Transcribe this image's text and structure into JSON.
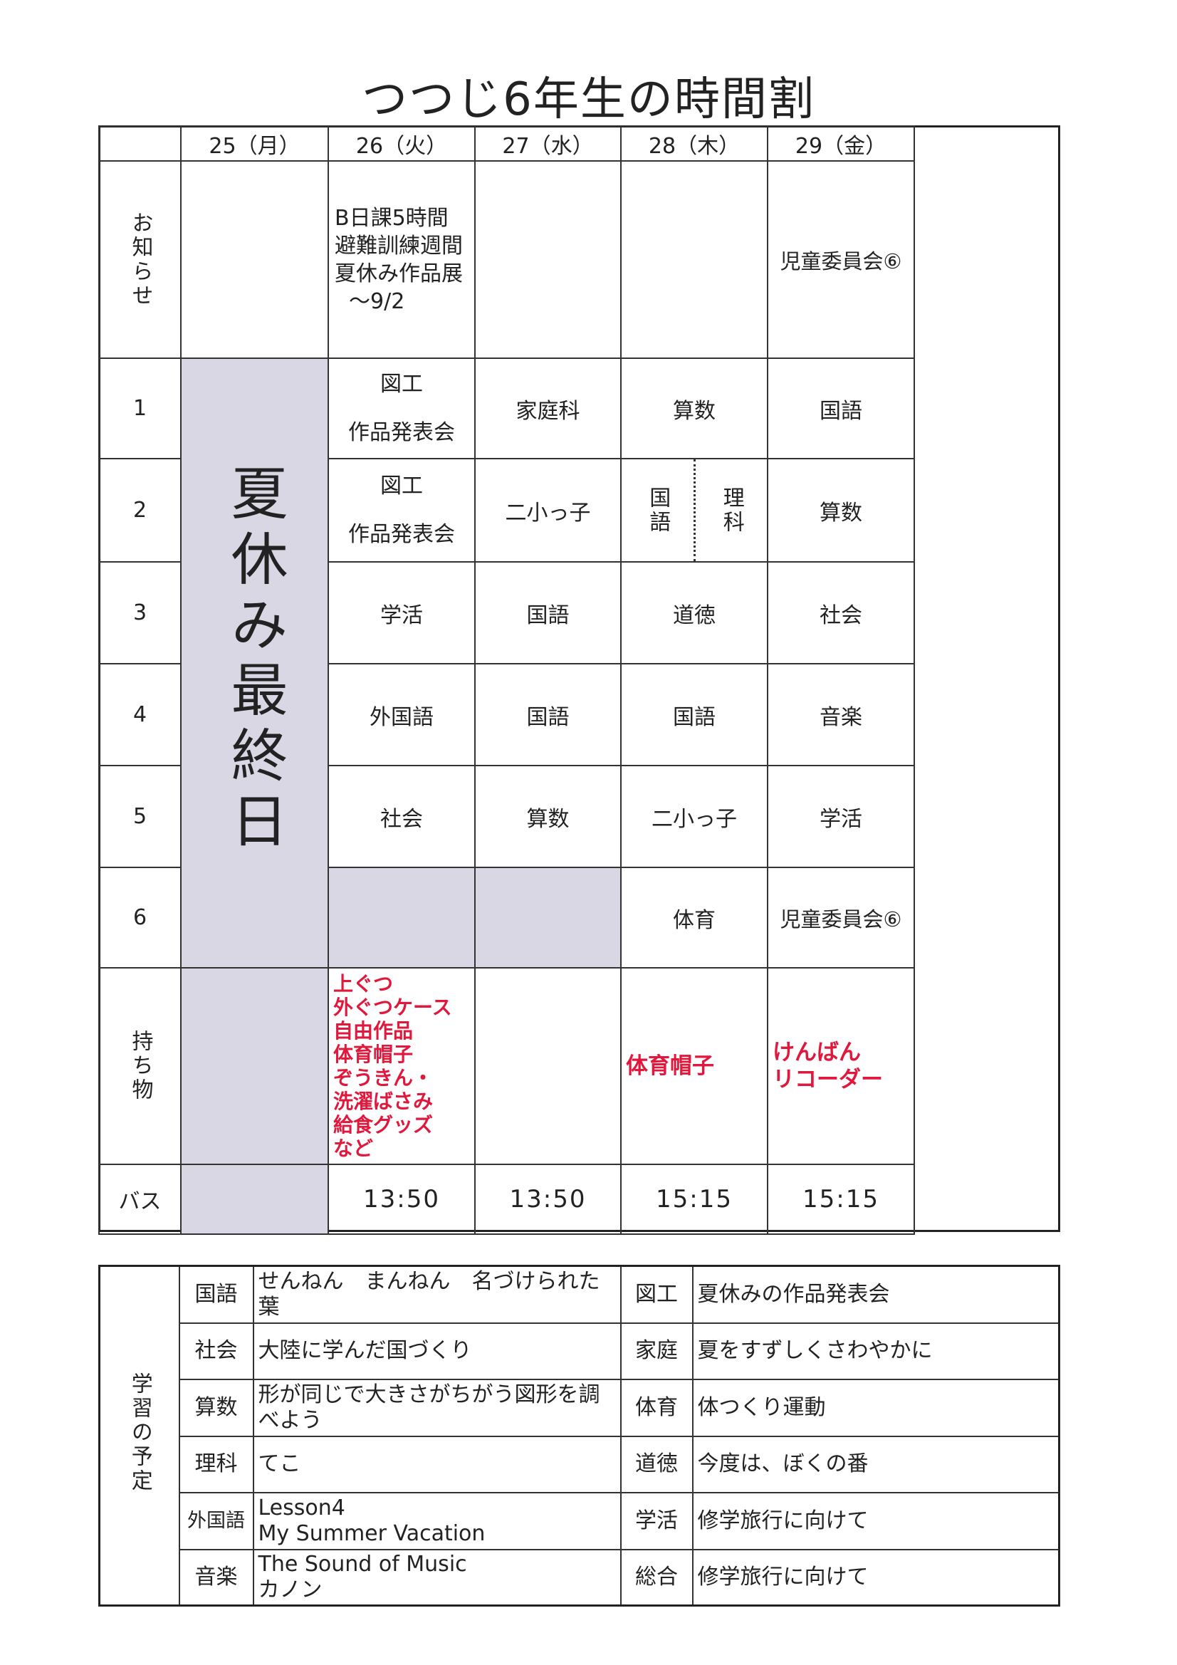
{
  "title": "つつじ6年生の時間割",
  "days": [
    "25（月）",
    "26（火）",
    "27（水）",
    "28（木）",
    "29（金）"
  ],
  "row_labels": {
    "notice": "お知らせ",
    "periods": [
      "1",
      "2",
      "3",
      "4",
      "5",
      "6"
    ],
    "items": "持ち物",
    "bus": "バス"
  },
  "notices": {
    "tue": [
      "B日課5時間",
      "避難訓練週間",
      "夏休み作品展",
      "～9/2"
    ],
    "fri": "児童委員会⑥"
  },
  "monday_note": "夏休み最終日",
  "schedule": {
    "tue": [
      "図工\n\n作品発表会",
      "図工\n\n作品発表会",
      "学活",
      "外国語",
      "社会",
      ""
    ],
    "wed": [
      "家庭科",
      "二小っ子",
      "国語",
      "国語",
      "算数",
      ""
    ],
    "thu": [
      "算数",
      "",
      "道徳",
      "国語",
      "二小っ子",
      "体育"
    ],
    "thu_p2": [
      "国語",
      "理科"
    ],
    "fri": [
      "国語",
      "算数",
      "社会",
      "音楽",
      "学活",
      "児童委員会⑥"
    ]
  },
  "items": {
    "tue": [
      "上ぐつ",
      "外ぐつケース",
      "自由作品",
      "体育帽子",
      "ぞうきん・",
      "洗濯ばさみ",
      "給食グッズ",
      "など"
    ],
    "thu": "体育帽子",
    "fri": [
      "けんばん",
      "リコーダー"
    ]
  },
  "bus": {
    "tue": "13:50",
    "wed": "13:50",
    "thu": "15:15",
    "fri": "15:15"
  },
  "plan": {
    "label": "学習の予定",
    "rows": [
      {
        "s1": "国語",
        "c1": "せんねん　まんねん　名づけられた葉",
        "s2": "図工",
        "c2": "夏休みの作品発表会"
      },
      {
        "s1": "社会",
        "c1": "大陸に学んだ国づくり",
        "s2": "家庭",
        "c2": "夏をすずしくさわやかに"
      },
      {
        "s1": "算数",
        "c1": "形が同じで大きさがちがう図形を調べよう",
        "s2": "体育",
        "c2": "体つくり運動"
      },
      {
        "s1": "理科",
        "c1": "てこ",
        "s2": "道徳",
        "c2": "今度は、ぼくの番"
      },
      {
        "s1": "外国語",
        "c1": "Lesson4\nMy Summer Vacation",
        "s2": "学活",
        "c2": "修学旅行に向けて"
      },
      {
        "s1": "音楽",
        "c1": "The Sound of Music\nカノン",
        "s2": "総合",
        "c2": "修学旅行に向けて"
      }
    ]
  },
  "colors": {
    "shade": "#d9d7e3",
    "red": "#e0183c"
  }
}
